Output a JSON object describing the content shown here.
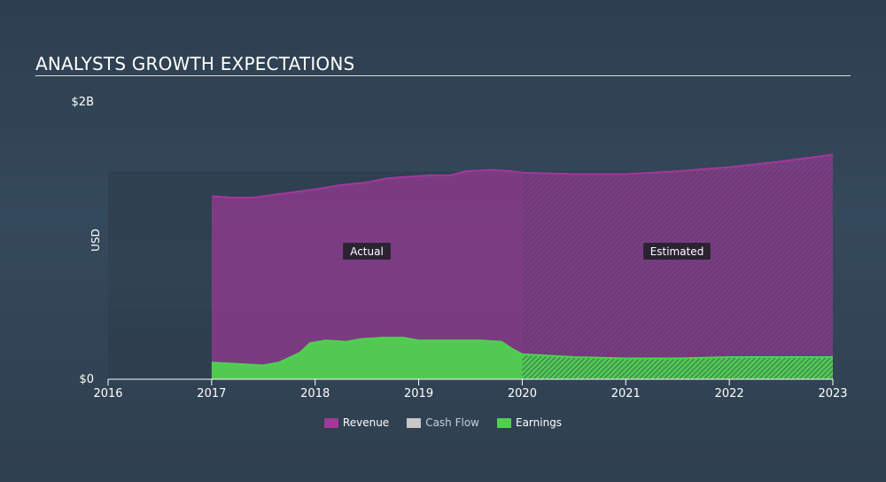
{
  "title": "ANALYSTS GROWTH EXPECTATIONS",
  "chart_data": {
    "type": "area",
    "title": "ANALYSTS GROWTH EXPECTATIONS",
    "ylabel": "USD",
    "xlabel": "",
    "xlim": [
      2016,
      2023.0
    ],
    "ylim": [
      0,
      2.0
    ],
    "y_unit": "B",
    "y_ticks": [
      {
        "value": 0,
        "label": "$0"
      },
      {
        "value": 2.0,
        "label": "$2B"
      }
    ],
    "x_ticks": [
      {
        "value": 2016,
        "label": "2016"
      },
      {
        "value": 2017,
        "label": "2017"
      },
      {
        "value": 2018,
        "label": "2018"
      },
      {
        "value": 2019,
        "label": "2019"
      },
      {
        "value": 2020,
        "label": "2020"
      },
      {
        "value": 2021,
        "label": "2021"
      },
      {
        "value": 2022,
        "label": "2022"
      },
      {
        "value": 2023,
        "label": "2023"
      }
    ],
    "actual_end": 2020.0,
    "region_labels": {
      "actual": "Actual",
      "estimated": "Estimated"
    },
    "legend_position": "bottom-center",
    "grid": false,
    "series": [
      {
        "name": "Revenue",
        "color": "#a0399a",
        "x": [
          2017.0,
          2017.2,
          2017.4,
          2017.6,
          2017.8,
          2018.0,
          2018.25,
          2018.5,
          2018.7,
          2018.9,
          2019.1,
          2019.3,
          2019.45,
          2019.7,
          2019.9,
          2020.0,
          2020.5,
          2021.0,
          2021.5,
          2022.0,
          2022.5,
          2023.0
        ],
        "values": [
          1.32,
          1.31,
          1.31,
          1.33,
          1.35,
          1.37,
          1.4,
          1.42,
          1.45,
          1.46,
          1.47,
          1.47,
          1.5,
          1.51,
          1.5,
          1.49,
          1.48,
          1.48,
          1.5,
          1.53,
          1.57,
          1.62
        ]
      },
      {
        "name": "Cash Flow",
        "color": "#c8c8c8",
        "x": [],
        "values": []
      },
      {
        "name": "Earnings",
        "color": "#4fd14f",
        "x": [
          2017.0,
          2017.25,
          2017.5,
          2017.65,
          2017.85,
          2017.95,
          2018.1,
          2018.3,
          2018.45,
          2018.65,
          2018.85,
          2019.0,
          2019.2,
          2019.4,
          2019.6,
          2019.8,
          2019.9,
          2020.0,
          2020.5,
          2021.0,
          2021.5,
          2022.0,
          2022.5,
          2023.0
        ],
        "values": [
          0.12,
          0.11,
          0.1,
          0.12,
          0.19,
          0.26,
          0.28,
          0.27,
          0.29,
          0.3,
          0.3,
          0.28,
          0.28,
          0.28,
          0.28,
          0.27,
          0.22,
          0.18,
          0.16,
          0.15,
          0.15,
          0.16,
          0.16,
          0.16
        ]
      }
    ]
  },
  "legend": [
    {
      "name": "Revenue",
      "color": "#a0399a"
    },
    {
      "name": "Cash Flow",
      "color": "#c8c8c8"
    },
    {
      "name": "Earnings",
      "color": "#4fd14f"
    }
  ]
}
